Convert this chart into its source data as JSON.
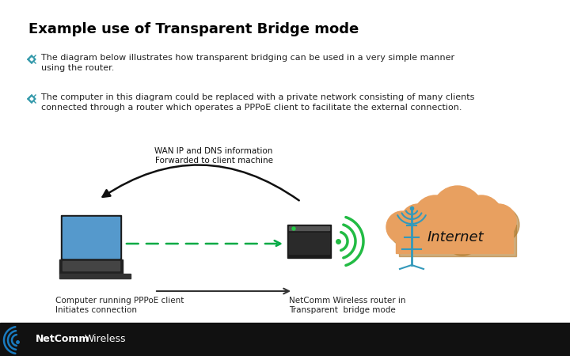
{
  "title": "Example use of Transparent Bridge mode",
  "title_fontsize": 13,
  "bg_color": "#ffffff",
  "footer_bg": "#111111",
  "bullet_color": "#3399aa",
  "text1": "The diagram below illustrates how transparent bridging can be used in a very simple manner\nusing the router.",
  "text2": "The computer in this diagram could be replaced with a private network consisting of many clients\nconnected through a router which operates a PPPoE client to facilitate the external connection.",
  "wan_label": "WAN IP and DNS information\nForwarded to client machine",
  "computer_label": "Computer running PPPoE client\nInitiates connection",
  "router_label": "NetComm Wireless router in\nTransparent  bridge mode",
  "internet_label": "Internet",
  "arrow_color_dashed": "#00aa44",
  "cloud_color": "#e8a060",
  "cloud_shadow": "#b07828",
  "antenna_color": "#3399bb",
  "wifi_color": "#22bb44"
}
